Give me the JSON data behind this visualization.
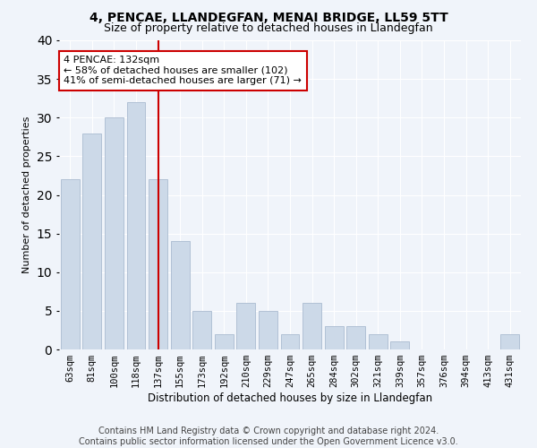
{
  "title": "4, PENCAE, LLANDEGFAN, MENAI BRIDGE, LL59 5TT",
  "subtitle": "Size of property relative to detached houses in Llandegfan",
  "xlabel": "Distribution of detached houses by size in Llandegfan",
  "ylabel": "Number of detached properties",
  "categories": [
    "63sqm",
    "81sqm",
    "100sqm",
    "118sqm",
    "137sqm",
    "155sqm",
    "173sqm",
    "192sqm",
    "210sqm",
    "229sqm",
    "247sqm",
    "265sqm",
    "284sqm",
    "302sqm",
    "321sqm",
    "339sqm",
    "357sqm",
    "376sqm",
    "394sqm",
    "413sqm",
    "431sqm"
  ],
  "values": [
    22,
    28,
    30,
    32,
    22,
    14,
    5,
    2,
    6,
    5,
    2,
    6,
    3,
    3,
    2,
    1,
    0,
    0,
    0,
    0,
    2
  ],
  "bar_color": "#ccd9e8",
  "bar_edgecolor": "#aabbd0",
  "vline_index": 4,
  "reference_line_label": "4 PENCAE: 132sqm",
  "annotation_line1": "← 58% of detached houses are smaller (102)",
  "annotation_line2": "41% of semi-detached houses are larger (71) →",
  "annotation_box_facecolor": "#ffffff",
  "annotation_box_edgecolor": "#cc0000",
  "vline_color": "#cc0000",
  "ylim": [
    0,
    40
  ],
  "yticks": [
    0,
    5,
    10,
    15,
    20,
    25,
    30,
    35,
    40
  ],
  "footer": "Contains HM Land Registry data © Crown copyright and database right 2024.\nContains public sector information licensed under the Open Government Licence v3.0.",
  "bg_color": "#f0f4fa",
  "plot_bg_color": "#f0f4fa",
  "title_fontsize": 10,
  "subtitle_fontsize": 9,
  "xlabel_fontsize": 8.5,
  "ylabel_fontsize": 8,
  "tick_fontsize": 7.5,
  "annotation_fontsize": 8,
  "footer_fontsize": 7
}
